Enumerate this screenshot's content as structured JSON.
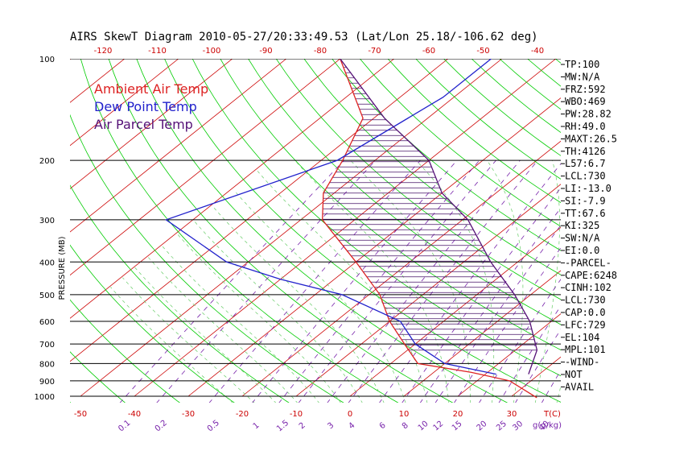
{
  "chart_data": {
    "type": "line",
    "title": "AIRS SkewT Diagram 2010-05-27/20:33:49.53 (Lat/Lon 25.18/-106.62 deg)",
    "ylabel": "PRESSURE (MB)",
    "xlabel_bottom": "T(C)",
    "mixing_ratio_label": "g(g/kg)",
    "pressure_ticks": [
      "100",
      "200",
      "300",
      "400",
      "500",
      "600",
      "700",
      "800",
      "900",
      "1000"
    ],
    "bottom_temp_ticks": [
      "-50",
      "-40",
      "-30",
      "-20",
      "-10",
      "0",
      "10",
      "20",
      "30"
    ],
    "top_temp_ticks": [
      "-120",
      "-110",
      "-100",
      "-90",
      "-80",
      "-70",
      "-60",
      "-50",
      "-40"
    ],
    "mixing_ratio_ticks": [
      "0.1",
      "0.2",
      "0.5",
      "1",
      "1.5",
      "2",
      "3",
      "4",
      "6",
      "8",
      "10",
      "12",
      "15",
      "20",
      "25",
      "30",
      "40"
    ],
    "legend": [
      {
        "label": "Ambient Air Temp",
        "color": "#dd2222"
      },
      {
        "label": "Dew Point Temp",
        "color": "#2222cc"
      },
      {
        "label": "Air Parcel Temp",
        "color": "#551177"
      }
    ],
    "colors": {
      "isotherm": "#cc0000",
      "dry_adiabat": "#00cc00",
      "moist_adiabat": "#66cc66",
      "mixing_ratio": "#7722aa",
      "cape_hatch": "#441166"
    },
    "series": [
      {
        "name": "Ambient Air Temp",
        "color": "#dd2222",
        "points": [
          [
            1010,
            35
          ],
          [
            900,
            26
          ],
          [
            850,
            17
          ],
          [
            800,
            5
          ],
          [
            700,
            -2
          ],
          [
            600,
            -10
          ],
          [
            500,
            -18
          ],
          [
            400,
            -30
          ],
          [
            300,
            -46
          ],
          [
            250,
            -52
          ],
          [
            200,
            -56
          ],
          [
            150,
            -62
          ],
          [
            100,
            -80
          ]
        ]
      },
      {
        "name": "Dew Point Temp",
        "color": "#2222cc",
        "points": [
          [
            860,
            22
          ],
          [
            800,
            10
          ],
          [
            700,
            0
          ],
          [
            600,
            -8
          ],
          [
            500,
            -25
          ],
          [
            450,
            -40
          ],
          [
            400,
            -54
          ],
          [
            300,
            -75
          ],
          [
            200,
            -57
          ],
          [
            130,
            -52
          ],
          [
            100,
            -52
          ]
        ]
      },
      {
        "name": "Air Parcel Temp",
        "color": "#551177",
        "points": [
          [
            860,
            28
          ],
          [
            730,
            24
          ],
          [
            600,
            16
          ],
          [
            500,
            7
          ],
          [
            400,
            -5
          ],
          [
            300,
            -19
          ],
          [
            250,
            -30
          ],
          [
            200,
            -40
          ],
          [
            150,
            -58
          ],
          [
            100,
            -80
          ]
        ]
      }
    ]
  },
  "indices": [
    "TP:100",
    "MW:N/A",
    "FRZ:592",
    "WBO:469",
    "PW:28.82",
    "RH:49.0",
    "MAXT:26.5",
    "TH:4126",
    "L57:6.7",
    "LCL:730",
    "LI:-13.0",
    "SI:-7.9",
    "TT:67.6",
    "KI:325",
    "SW:N/A",
    "EI:0.0",
    "-PARCEL-",
    "CAPE:6248",
    "CINH:102",
    "LCL:730",
    "CAP:0.0",
    "LFC:729",
    "EL:104",
    "MPL:101",
    "-WIND-",
    "NOT",
    "AVAIL"
  ]
}
